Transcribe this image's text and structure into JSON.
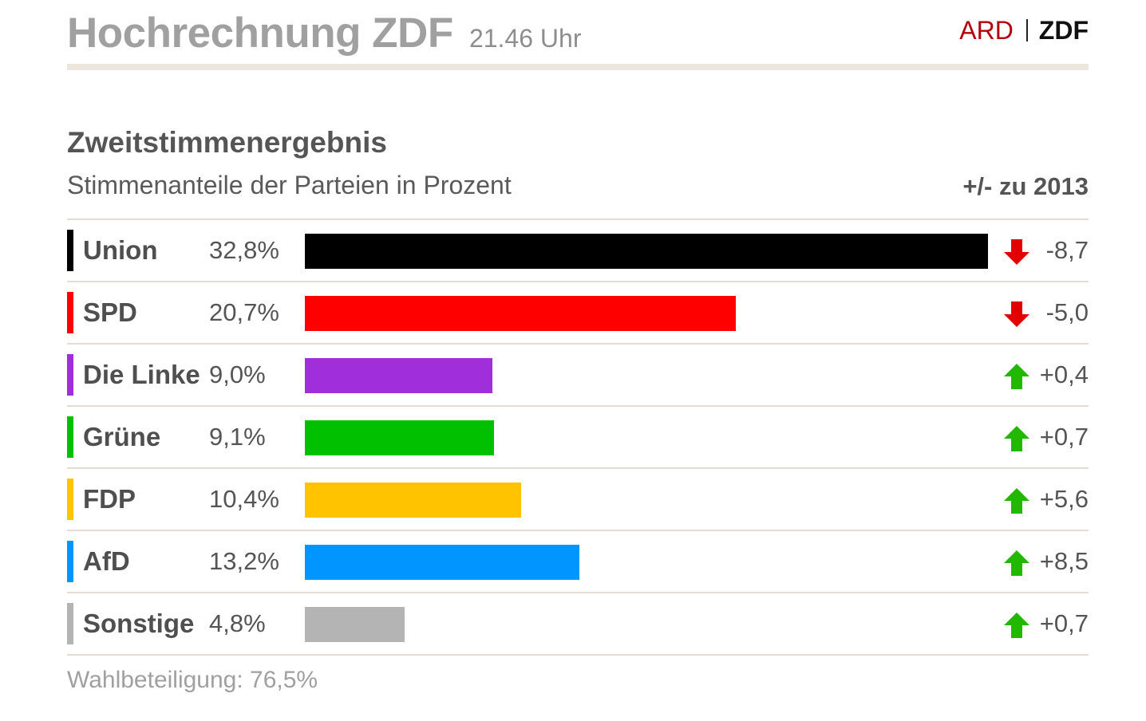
{
  "header": {
    "title": "Hochrechnung ZDF",
    "time": "21.46 Uhr",
    "brand_ard": "ARD",
    "brand_zdf": "ZDF"
  },
  "chart_data": {
    "type": "bar",
    "title": "Zweitstimmenergebnis",
    "subtitle": "Stimmenanteile der Parteien in Prozent",
    "delta_header": "+/- zu 2013",
    "categories": [
      "Union",
      "SPD",
      "Die Linke",
      "Grüne",
      "FDP",
      "AfD",
      "Sonstige"
    ],
    "values": [
      32.8,
      20.7,
      9.0,
      9.1,
      10.4,
      13.2,
      4.8
    ],
    "value_labels": [
      "32,8%",
      "20,7%",
      "9,0%",
      "9,1%",
      "10,4%",
      "13,2%",
      "4,8%"
    ],
    "deltas": [
      -8.7,
      -5.0,
      0.4,
      0.7,
      5.6,
      8.5,
      0.7
    ],
    "delta_labels": [
      "-8,7",
      "-5,0",
      "+0,4",
      "+0,7",
      "+5,6",
      "+8,5",
      "+0,7"
    ],
    "colors": [
      "#000000",
      "#ff0000",
      "#a02fdb",
      "#00c000",
      "#ffc300",
      "#0095ff",
      "#b4b4b4"
    ],
    "arrow_colors": {
      "down": "#e30000",
      "up": "#22b800"
    },
    "xlim": [
      0,
      32.8
    ],
    "grid": false,
    "legend": "none"
  },
  "footer": {
    "turnout": "Wahlbeteiligung: 76,5%"
  }
}
